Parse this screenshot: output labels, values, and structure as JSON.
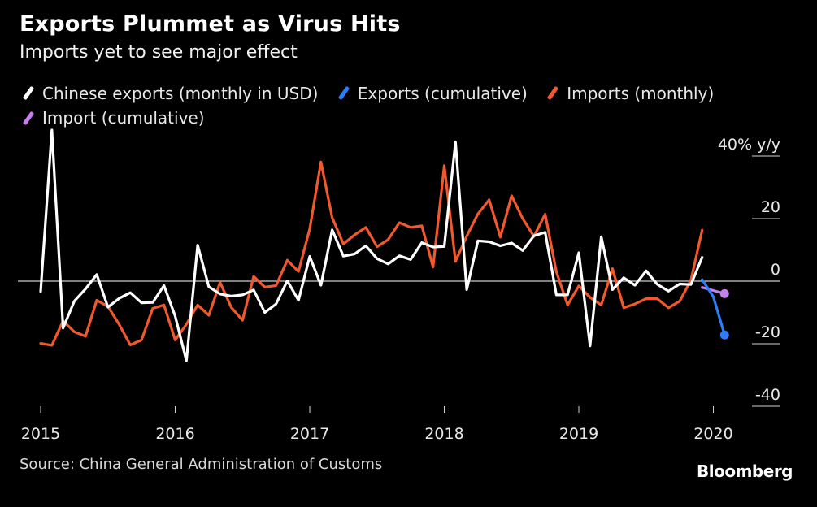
{
  "title": "Exports Plummet as Virus Hits",
  "subtitle": "Imports yet to see major effect",
  "source": "Source: China General Administration of Customs",
  "brand": "Bloomberg",
  "legend": [
    {
      "label": "Chinese exports (monthly in USD)",
      "color": "#ffffff"
    },
    {
      "label": "Exports (cumulative)",
      "color": "#2f7df6"
    },
    {
      "label": "Imports (monthly)",
      "color": "#f1582e"
    },
    {
      "label": "Import (cumulative)",
      "color": "#c77ff0"
    }
  ],
  "chart_data": {
    "type": "line",
    "ylabel": "40% y/y",
    "ylim": [
      -40,
      40
    ],
    "yticks": [
      40,
      20,
      0,
      -20,
      -40
    ],
    "ytick_labels": [
      "40% y/y",
      "20",
      "0",
      "-20",
      "-40"
    ],
    "xticks": [
      "2015",
      "2016",
      "2017",
      "2018",
      "2019",
      "2020"
    ],
    "zero_line": true,
    "series": [
      {
        "name": "Chinese exports (monthly in USD)",
        "color": "#ffffff",
        "x": [
          "2015-01",
          "2015-02",
          "2015-03",
          "2015-04",
          "2015-05",
          "2015-06",
          "2015-07",
          "2015-08",
          "2015-09",
          "2015-10",
          "2015-11",
          "2015-12",
          "2016-01",
          "2016-02",
          "2016-03",
          "2016-04",
          "2016-05",
          "2016-06",
          "2016-07",
          "2016-08",
          "2016-09",
          "2016-10",
          "2016-11",
          "2016-12",
          "2017-01",
          "2017-02",
          "2017-03",
          "2017-04",
          "2017-05",
          "2017-06",
          "2017-07",
          "2017-08",
          "2017-09",
          "2017-10",
          "2017-11",
          "2017-12",
          "2018-01",
          "2018-02",
          "2018-03",
          "2018-04",
          "2018-05",
          "2018-06",
          "2018-07",
          "2018-08",
          "2018-09",
          "2018-10",
          "2018-11",
          "2018-12",
          "2019-01",
          "2019-02",
          "2019-03",
          "2019-04",
          "2019-05",
          "2019-06",
          "2019-07",
          "2019-08",
          "2019-09",
          "2019-10",
          "2019-11",
          "2019-12"
        ],
        "values": [
          -3.3,
          48.3,
          -15.0,
          -6.4,
          -2.5,
          2.1,
          -8.3,
          -5.5,
          -3.7,
          -6.9,
          -6.8,
          -1.4,
          -11.2,
          -25.4,
          11.5,
          -1.8,
          -4.1,
          -4.8,
          -4.4,
          -2.8,
          -10.0,
          -7.3,
          0.1,
          -6.1,
          7.9,
          -1.3,
          16.4,
          8.0,
          8.7,
          11.3,
          7.2,
          5.5,
          8.1,
          6.9,
          12.3,
          10.9,
          11.1,
          44.5,
          -2.7,
          12.9,
          12.6,
          11.3,
          12.2,
          9.8,
          14.5,
          15.6,
          -4.4,
          -4.4,
          9.1,
          -20.7,
          14.2,
          -2.7,
          1.1,
          -1.3,
          3.3,
          -1.0,
          -3.2,
          -0.9,
          -1.1,
          7.6
        ]
      },
      {
        "name": "Exports (cumulative)",
        "color": "#2f7df6",
        "x": [
          "2019-12",
          "2020-01",
          "2020-02"
        ],
        "values": [
          0.5,
          -5.0,
          -17.2
        ]
      },
      {
        "name": "Imports (monthly)",
        "color": "#f1582e",
        "x": [
          "2015-01",
          "2015-02",
          "2015-03",
          "2015-04",
          "2015-05",
          "2015-06",
          "2015-07",
          "2015-08",
          "2015-09",
          "2015-10",
          "2015-11",
          "2015-12",
          "2016-01",
          "2016-02",
          "2016-03",
          "2016-04",
          "2016-05",
          "2016-06",
          "2016-07",
          "2016-08",
          "2016-09",
          "2016-10",
          "2016-11",
          "2016-12",
          "2017-01",
          "2017-02",
          "2017-03",
          "2017-04",
          "2017-05",
          "2017-06",
          "2017-07",
          "2017-08",
          "2017-09",
          "2017-10",
          "2017-11",
          "2017-12",
          "2018-01",
          "2018-02",
          "2018-03",
          "2018-04",
          "2018-05",
          "2018-06",
          "2018-07",
          "2018-08",
          "2018-09",
          "2018-10",
          "2018-11",
          "2018-12",
          "2019-01",
          "2019-02",
          "2019-03",
          "2019-04",
          "2019-05",
          "2019-06",
          "2019-07",
          "2019-08",
          "2019-09",
          "2019-10",
          "2019-11",
          "2019-12"
        ],
        "values": [
          -19.9,
          -20.5,
          -12.7,
          -16.2,
          -17.6,
          -6.1,
          -8.1,
          -13.8,
          -20.4,
          -18.8,
          -8.7,
          -7.6,
          -18.8,
          -13.8,
          -7.6,
          -10.9,
          -0.4,
          -8.4,
          -12.5,
          1.5,
          -1.9,
          -1.4,
          6.7,
          3.1,
          16.7,
          38.1,
          20.3,
          11.9,
          14.8,
          17.2,
          11.0,
          13.3,
          18.7,
          17.2,
          17.7,
          4.5,
          36.9,
          6.3,
          14.4,
          21.5,
          26.0,
          14.1,
          27.3,
          20.0,
          14.3,
          21.4,
          3.0,
          -7.6,
          -1.5,
          -5.2,
          -7.6,
          4.0,
          -8.5,
          -7.3,
          -5.6,
          -5.6,
          -8.5,
          -6.4,
          0.3,
          16.3
        ]
      },
      {
        "name": "Import (cumulative)",
        "color": "#c77ff0",
        "x": [
          "2019-12",
          "2020-01",
          "2020-02"
        ],
        "values": [
          -2.0,
          -3.0,
          -4.0
        ]
      }
    ]
  }
}
